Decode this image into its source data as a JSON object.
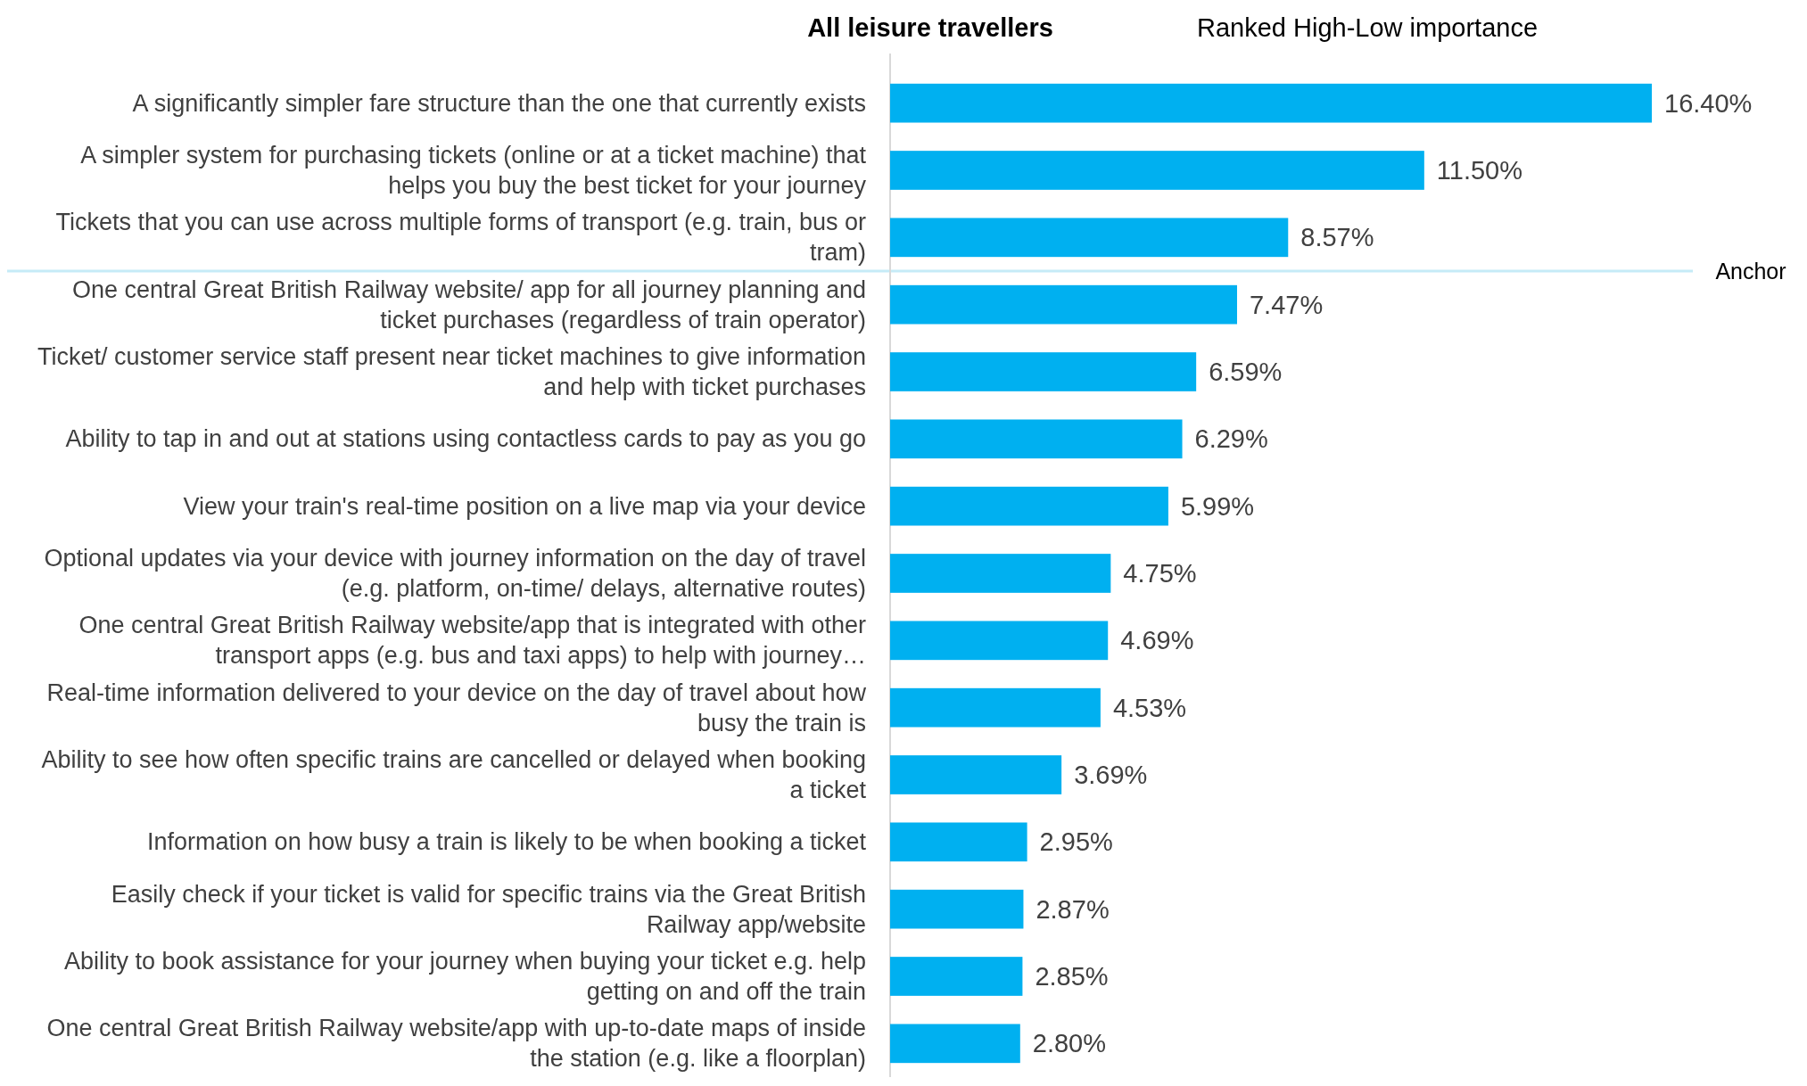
{
  "chart_data": {
    "type": "bar",
    "orientation": "horizontal",
    "title": "All leisure travellers",
    "subtitle": "Ranked High-Low importance",
    "categories": [
      "A significantly simpler fare structure than the one that currently exists",
      "A simpler system for purchasing tickets (online or at a ticket machine) that helps you buy the best ticket for your journey",
      "Tickets that you can use across multiple forms of transport (e.g. train, bus or tram)",
      "One central Great British Railway website/ app for all journey planning and ticket purchases (regardless of train operator)",
      "Ticket/ customer service staff present near ticket machines to give information and help with ticket purchases",
      "Ability to tap in and out at stations using contactless cards to pay as you go",
      "View your train's real-time position on a live map via your device",
      "Optional updates via your device with journey information on the day of travel (e.g. platform, on-time/ delays, alternative routes)",
      "One central Great British Railway website/app that is integrated with other transport apps (e.g. bus and taxi apps) to help with journey…",
      "Real-time information delivered to your device on the day of travel about how busy the train is",
      "Ability to see how often specific trains are cancelled or delayed when booking a ticket",
      "Information on how busy a train is likely to be when booking a ticket",
      "Easily check if your ticket is valid for specific trains via the Great British Railway app/website",
      "Ability to book assistance for your journey when buying your ticket e.g. help getting on and off the train",
      "One central Great British Railway website/app with up-to-date maps of inside the station (e.g. like a floorplan)"
    ],
    "values": [
      16.4,
      11.5,
      8.57,
      7.47,
      6.59,
      6.29,
      5.99,
      4.75,
      4.69,
      4.53,
      3.69,
      2.95,
      2.87,
      2.85,
      2.8
    ],
    "value_labels": [
      "16.40%",
      "11.50%",
      "8.57%",
      "7.47%",
      "6.59%",
      "6.29%",
      "5.99%",
      "4.75%",
      "4.69%",
      "4.53%",
      "3.69%",
      "2.95%",
      "2.87%",
      "2.85%",
      "2.80%"
    ],
    "color": "#00b0f0",
    "relative": false,
    "ref_lines": [
      {
        "axis": "y",
        "value": "One central Great British Railway website/ app for all journey planning and ticket purchases (regardless of train operator)",
        "label": "Anchor",
        "color": "#c6ebf7"
      }
    ]
  }
}
